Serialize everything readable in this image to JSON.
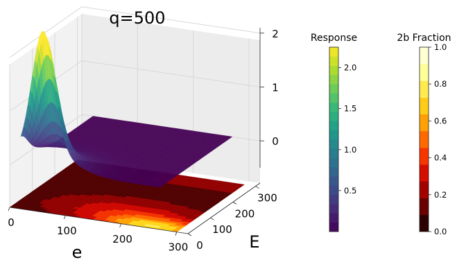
{
  "chart_data": {
    "type": "surface3d",
    "title": "q=500",
    "xlabel": "e",
    "ylabel": "E",
    "x_ticks": [
      "0",
      "100",
      "200",
      "300"
    ],
    "y_ticks": [
      "0",
      "100",
      "200",
      "300"
    ],
    "z_ticks": [
      "0",
      "1",
      "2"
    ],
    "xlim": [
      0,
      320
    ],
    "ylim": [
      0,
      320
    ],
    "zlim": [
      -0.5,
      2.1
    ],
    "surface": {
      "name": "Response",
      "peak_value": 2.2,
      "peak_e": 60,
      "peak_E": 0,
      "baseline": 0
    },
    "contour": {
      "name": "2b Fraction",
      "placement": "floor"
    },
    "colorbars": [
      {
        "title": "Response",
        "colormap": "viridis",
        "range": [
          0.0,
          2.25
        ],
        "ticks": [
          "0.5",
          "1.0",
          "1.5",
          "2.0"
        ],
        "tick_values": [
          0.5,
          1.0,
          1.5,
          2.0
        ],
        "levels": 20
      },
      {
        "title": "2b Fraction",
        "colormap": "hot",
        "range": [
          0.0,
          1.0
        ],
        "ticks": [
          "0.0",
          "0.2",
          "0.4",
          "0.6",
          "0.8",
          "1.0"
        ],
        "tick_values": [
          0.0,
          0.2,
          0.4,
          0.6,
          0.8,
          1.0
        ],
        "levels": 11
      }
    ]
  }
}
